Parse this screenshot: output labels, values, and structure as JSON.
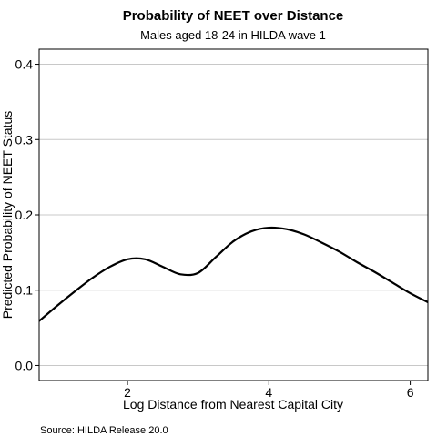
{
  "chart_data": {
    "type": "line",
    "title": "Probability of NEET over Distance",
    "subtitle": "Males aged 18-24 in HILDA wave 1",
    "xlabel": "Log Distance from Nearest Capital City",
    "ylabel": "Predicted Probability of NEET Status",
    "xlim": [
      0.75,
      6.25
    ],
    "ylim": [
      -0.02,
      0.42
    ],
    "x_ticks": [
      2,
      4,
      6
    ],
    "y_ticks": [
      0.0,
      0.1,
      0.2,
      0.3,
      0.4
    ],
    "x_tick_labels": [
      "2",
      "4",
      "6"
    ],
    "y_tick_labels": [
      "0.0",
      "0.1",
      "0.2",
      "0.3",
      "0.4"
    ],
    "grid": "horizontal",
    "series": [
      {
        "color": "#000000",
        "x": [
          0.75,
          1.0,
          1.25,
          1.5,
          1.75,
          2.0,
          2.25,
          2.5,
          2.75,
          3.0,
          3.25,
          3.5,
          3.75,
          4.0,
          4.25,
          4.5,
          4.75,
          5.0,
          5.25,
          5.5,
          5.75,
          6.0,
          6.25
        ],
        "y": [
          0.059,
          0.079,
          0.098,
          0.116,
          0.131,
          0.141,
          0.141,
          0.131,
          0.121,
          0.123,
          0.144,
          0.165,
          0.178,
          0.183,
          0.181,
          0.174,
          0.163,
          0.151,
          0.137,
          0.124,
          0.11,
          0.096,
          0.084
        ]
      }
    ]
  },
  "source_note": "Source: HILDA Release 20.0"
}
